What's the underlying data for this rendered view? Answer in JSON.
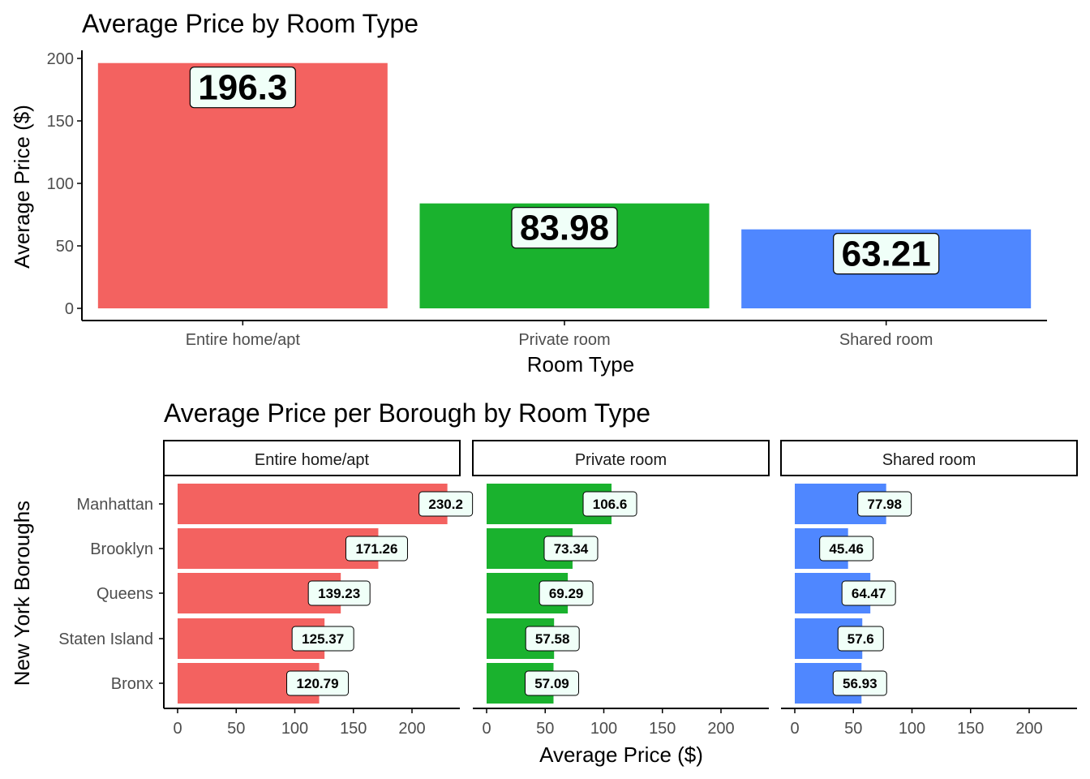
{
  "colors": {
    "Entire home/apt": "#F36260",
    "Private room": "#1AB22E",
    "Shared room": "#4F87FF",
    "label_fill": "#F0FFF8",
    "axis": "#000000",
    "tick_text": "#4d4d4d"
  },
  "chart_data": [
    {
      "type": "bar",
      "title": "Average Price by Room Type",
      "xlabel": "Room Type",
      "ylabel": "Average Price ($)",
      "categories": [
        "Entire home/apt",
        "Private room",
        "Shared room"
      ],
      "values": [
        196.3,
        83.98,
        63.21
      ],
      "value_labels": [
        "196.3",
        "83.98",
        "63.21"
      ],
      "ylim": [
        0,
        200
      ],
      "yticks": [
        "0",
        "50",
        "100",
        "150",
        "200"
      ],
      "grid": false,
      "legend": "none"
    },
    {
      "type": "bar",
      "orientation": "horizontal",
      "title": "Average Price per Borough by Room Type",
      "xlabel": "Average Price ($)",
      "ylabel": "New York Boroughs",
      "categories": [
        "Manhattan",
        "Brooklyn",
        "Queens",
        "Staten Island",
        "Bronx"
      ],
      "facets": [
        "Entire home/apt",
        "Private room",
        "Shared room"
      ],
      "series": [
        {
          "name": "Entire home/apt",
          "values": [
            230.2,
            171.26,
            139.23,
            125.37,
            120.79
          ],
          "value_labels": [
            "230.2",
            "171.26",
            "139.23",
            "125.37",
            "120.79"
          ]
        },
        {
          "name": "Private room",
          "values": [
            106.6,
            73.34,
            69.29,
            57.58,
            57.09
          ],
          "value_labels": [
            "106.6",
            "73.34",
            "69.29",
            "57.58",
            "57.09"
          ]
        },
        {
          "name": "Shared room",
          "values": [
            77.98,
            45.46,
            64.47,
            57.6,
            56.93
          ],
          "value_labels": [
            "77.98",
            "45.46",
            "64.47",
            "57.6",
            "56.93"
          ]
        }
      ],
      "xlim": [
        0,
        240
      ],
      "xticks": [
        "0",
        "50",
        "100",
        "150",
        "200"
      ],
      "grid": false,
      "legend": "none"
    }
  ]
}
